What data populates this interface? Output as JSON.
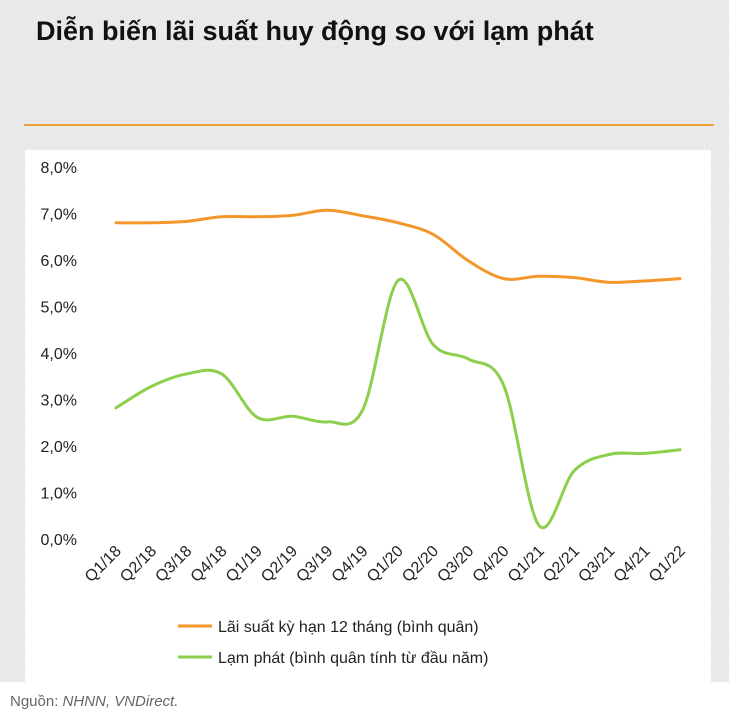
{
  "title": "Diễn biến lãi suất huy động so với lạm phát",
  "source": {
    "label": "Nguồn: ",
    "value": "NHNN, VNDirect."
  },
  "chart_data": {
    "type": "line",
    "categories": [
      "Q1/18",
      "Q2/18",
      "Q3/18",
      "Q4/18",
      "Q1/19",
      "Q2/19",
      "Q3/19",
      "Q4/19",
      "Q1/20",
      "Q2/20",
      "Q3/20",
      "Q4/20",
      "Q1/21",
      "Q2/21",
      "Q3/21",
      "Q4/21",
      "Q1/22"
    ],
    "y_ticks": [
      "0,0%",
      "1,0%",
      "2,0%",
      "3,0%",
      "4,0%",
      "5,0%",
      "6,0%",
      "7,0%",
      "8,0%"
    ],
    "ylim": [
      0,
      8
    ],
    "grid": false,
    "legend_position": "bottom",
    "series": [
      {
        "name": "Lãi suất kỳ hạn 12 tháng (bình quân)",
        "color": "#f5962a",
        "values": [
          6.8,
          6.8,
          6.83,
          6.93,
          6.93,
          6.96,
          7.07,
          6.95,
          6.8,
          6.55,
          5.98,
          5.6,
          5.65,
          5.62,
          5.52,
          5.55,
          5.6
        ]
      },
      {
        "name": "Lạm phát (bình quân tính từ đầu năm)",
        "color": "#8ccf4d",
        "values": [
          2.82,
          3.28,
          3.55,
          3.55,
          2.62,
          2.64,
          2.52,
          2.78,
          5.56,
          4.18,
          3.87,
          3.3,
          0.29,
          1.47,
          1.82,
          1.84,
          1.92
        ]
      }
    ]
  }
}
